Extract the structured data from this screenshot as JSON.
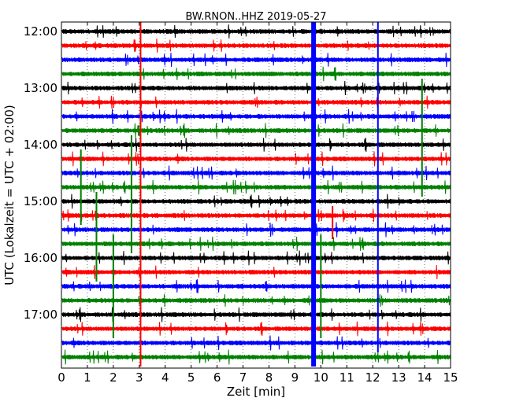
{
  "chart_data": {
    "type": "line",
    "title": "BW.RNON..HHZ 2019-05-27",
    "xlabel": "Zeit  [min]",
    "ylabel": "UTC (Lokalzeit = UTC + 02:00)",
    "xlim": [
      0,
      15
    ],
    "x_ticks": [
      0,
      1,
      2,
      3,
      4,
      5,
      6,
      7,
      8,
      9,
      10,
      11,
      12,
      13,
      14,
      15
    ],
    "x_tick_labels": [
      "0",
      "1",
      "2",
      "3",
      "4",
      "5",
      "6",
      "7",
      "8",
      "9",
      "10",
      "11",
      "12",
      "13",
      "14",
      "15"
    ],
    "y_tick_labels": [
      "12:00",
      "13:00",
      "14:00",
      "15:00",
      "16:00",
      "17:00"
    ],
    "trace_interval_minutes": 15,
    "trace_color_cycle": [
      "#000000",
      "#ff0000",
      "#0000ff",
      "#008000"
    ],
    "start_time": "12:00",
    "end_time": "17:45",
    "grid": true,
    "events": [
      {
        "x_min": 3.05,
        "color": "#ff0000",
        "from": "12:00",
        "to": "17:45",
        "type": "line"
      },
      {
        "x_min": 9.72,
        "color": "#0000ff",
        "from": "12:00",
        "to": "17:45",
        "type": "band"
      },
      {
        "x_min": 12.2,
        "color": "#0000ff",
        "from": "12:00",
        "to": "17:30",
        "type": "line"
      },
      {
        "x_min": 13.9,
        "color": "#008000",
        "from": "13:00",
        "to": "14:45",
        "type": "line"
      },
      {
        "x_min": 0.75,
        "color": "#008000",
        "from": "14:15",
        "to": "15:15",
        "type": "line"
      },
      {
        "x_min": 2.7,
        "color": "#008000",
        "from": "14:00",
        "to": "15:45",
        "type": "line"
      },
      {
        "x_min": 1.35,
        "color": "#008000",
        "from": "15:00",
        "to": "16:15",
        "type": "line"
      },
      {
        "x_min": 2.0,
        "color": "#008000",
        "from": "15:45",
        "to": "17:15",
        "type": "line"
      },
      {
        "x_min": 10.0,
        "color": "#008000",
        "from": "15:45",
        "to": "17:15",
        "type": "line"
      },
      {
        "x_min": 10.45,
        "color": "#ff0000",
        "from": "15:15",
        "to": "15:30",
        "type": "line"
      }
    ]
  }
}
